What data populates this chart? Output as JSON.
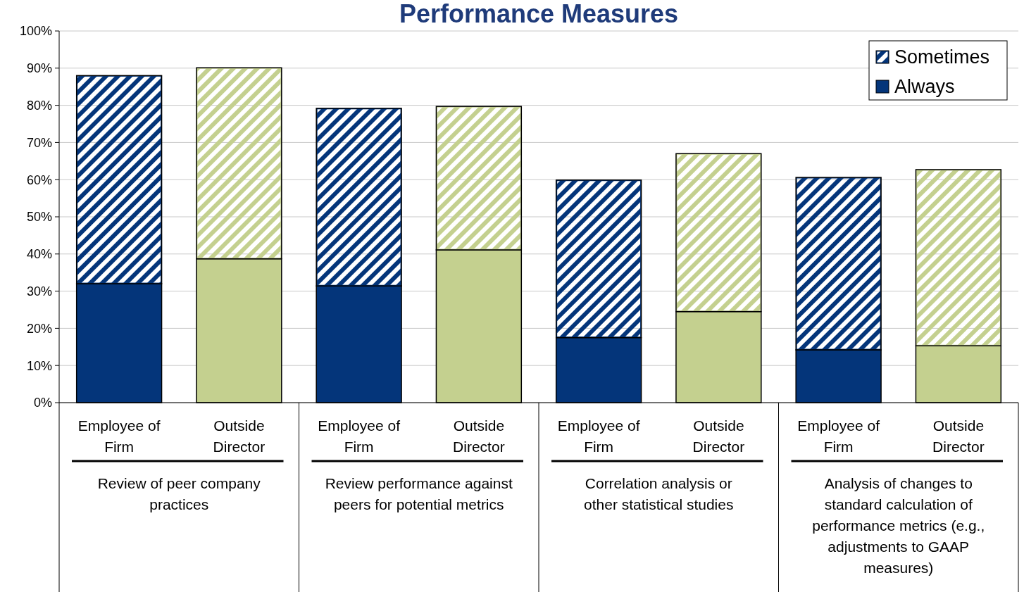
{
  "chart_data": {
    "type": "bar",
    "stacked": true,
    "title": "Performance Measures",
    "categories": [
      "Employee of Firm",
      "Outside Director",
      "Employee of Firm",
      "Outside Director",
      "Employee of Firm",
      "Outside Director",
      "Employee of Firm",
      "Outside Director"
    ],
    "series": [
      {
        "name": "Always",
        "colors": [
          "#04357a",
          "#c4d08f",
          "#04357a",
          "#c4d08f",
          "#04357a",
          "#c4d08f",
          "#04357a",
          "#c4d08f"
        ],
        "values": [
          32,
          38.7,
          31.4,
          41.1,
          17.5,
          24.5,
          14.2,
          15.3
        ]
      },
      {
        "name": "Sometimes",
        "colors": [
          "#04357a",
          "#c4d08f",
          "#04357a",
          "#c4d08f",
          "#04357a",
          "#c4d08f",
          "#04357a",
          "#c4d08f"
        ],
        "values": [
          56,
          51.4,
          47.8,
          38.6,
          42.4,
          42.5,
          46.4,
          47.4
        ]
      }
    ],
    "annotations": [
      "Review of peer company practices",
      "Review performance against peers for potential metrics",
      "Correlation analysis or other statistical studies",
      "Analysis of changes to standard calculation of performance metrics (e.g., adjustments to GAAP measures)"
    ],
    "ylim": [
      0,
      100
    ],
    "yticks": [
      {
        "value": 0,
        "label": "0%"
      },
      {
        "value": 10,
        "label": "10%"
      },
      {
        "value": 20,
        "label": "20%"
      },
      {
        "value": 30,
        "label": "30%"
      },
      {
        "value": 40,
        "label": "40%"
      },
      {
        "value": 50,
        "label": "50%"
      },
      {
        "value": 60,
        "label": "60%"
      },
      {
        "value": 70,
        "label": "70%"
      },
      {
        "value": 80,
        "label": "80%"
      },
      {
        "value": 90,
        "label": "90%"
      },
      {
        "value": 100,
        "label": "100%"
      }
    ],
    "grid": "y",
    "legend": "top right"
  }
}
